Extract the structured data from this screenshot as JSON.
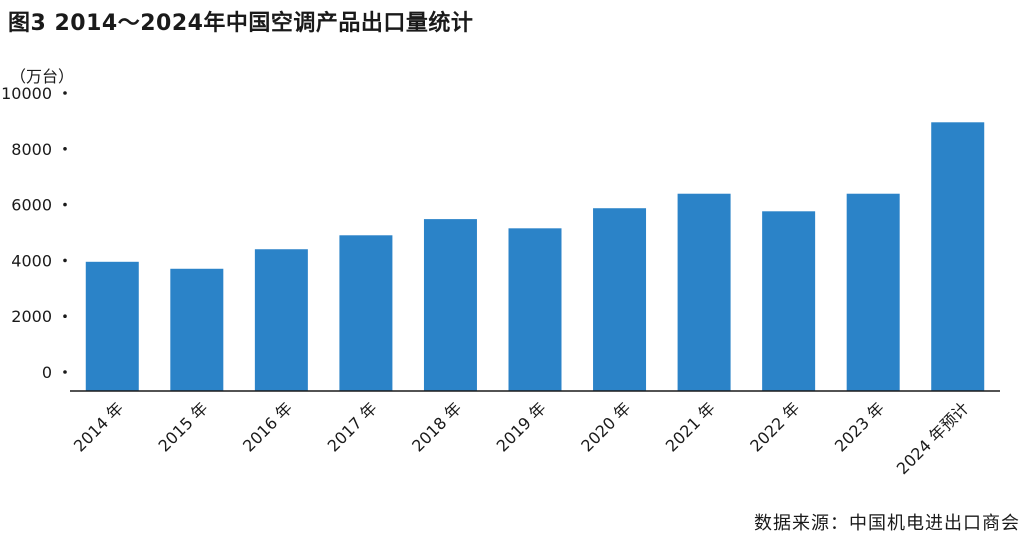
{
  "title": "图3 2014～2024年中国空调产品出口量统计",
  "source": "数据来源：中国机电进出口商会",
  "chart_data": {
    "type": "bar",
    "title": "图3 2014～2024年中国空调产品出口量统计",
    "ylabel": "（万台）",
    "xlabel": "",
    "ylim": [
      0,
      10000
    ],
    "yticks": [
      0,
      2000,
      4000,
      6000,
      8000,
      10000
    ],
    "grid": false,
    "bar_color": "#2b83c8",
    "categories": [
      "2014 年",
      "2015 年",
      "2016 年",
      "2017 年",
      "2018 年",
      "2019 年",
      "2020 年",
      "2021 年",
      "2022 年",
      "2023 年",
      "2024 年预计"
    ],
    "values": [
      3950,
      3700,
      4400,
      4900,
      5480,
      5150,
      5870,
      6390,
      5760,
      6390,
      8950
    ]
  }
}
